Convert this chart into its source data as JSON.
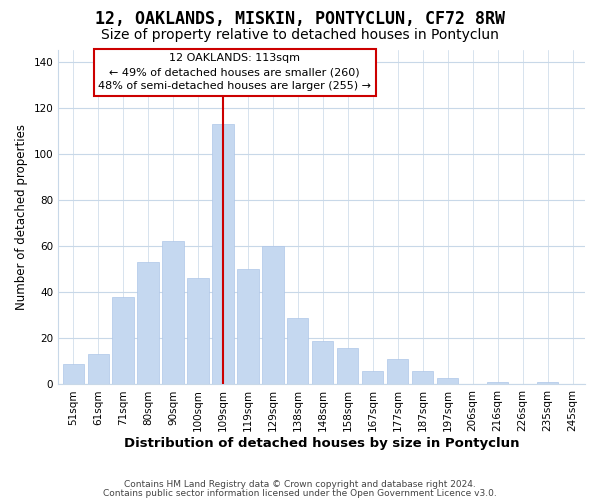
{
  "title": "12, OAKLANDS, MISKIN, PONTYCLUN, CF72 8RW",
  "subtitle": "Size of property relative to detached houses in Pontyclun",
  "xlabel": "Distribution of detached houses by size in Pontyclun",
  "ylabel": "Number of detached properties",
  "bar_labels": [
    "51sqm",
    "61sqm",
    "71sqm",
    "80sqm",
    "90sqm",
    "100sqm",
    "109sqm",
    "119sqm",
    "129sqm",
    "138sqm",
    "148sqm",
    "158sqm",
    "167sqm",
    "177sqm",
    "187sqm",
    "197sqm",
    "206sqm",
    "216sqm",
    "226sqm",
    "235sqm",
    "245sqm"
  ],
  "bar_values": [
    9,
    13,
    38,
    53,
    62,
    46,
    113,
    50,
    60,
    29,
    19,
    16,
    6,
    11,
    6,
    3,
    0,
    1,
    0,
    1,
    0
  ],
  "bar_color": "#c5d8f0",
  "bar_edge_color": "#aec6e8",
  "highlight_bar_index": 6,
  "highlight_line_color": "#cc0000",
  "ylim": [
    0,
    145
  ],
  "yticks": [
    0,
    20,
    40,
    60,
    80,
    100,
    120,
    140
  ],
  "annotation_title": "12 OAKLANDS: 113sqm",
  "annotation_line1": "← 49% of detached houses are smaller (260)",
  "annotation_line2": "48% of semi-detached houses are larger (255) →",
  "annotation_box_color": "#ffffff",
  "annotation_box_edge": "#cc0000",
  "footer_line1": "Contains HM Land Registry data © Crown copyright and database right 2024.",
  "footer_line2": "Contains public sector information licensed under the Open Government Licence v3.0.",
  "background_color": "#ffffff",
  "grid_color": "#c8d8e8",
  "title_fontsize": 12,
  "subtitle_fontsize": 10,
  "xlabel_fontsize": 9.5,
  "ylabel_fontsize": 8.5,
  "tick_fontsize": 7.5,
  "footer_fontsize": 6.5
}
